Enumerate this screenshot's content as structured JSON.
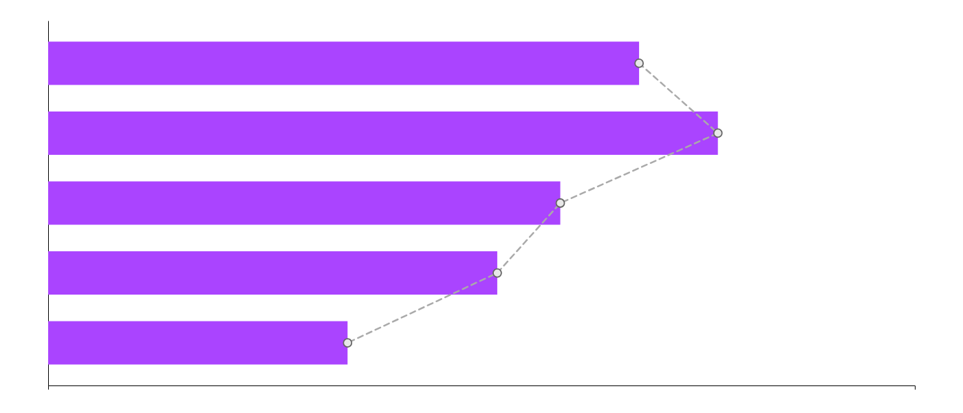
{
  "chart_data": {
    "type": "bar",
    "orientation": "horizontal",
    "categories": [
      null,
      null,
      null,
      null,
      null
    ],
    "series": [
      {
        "type": "bar",
        "color": "#aa44ff",
        "values": [
          75,
          85,
          65,
          57,
          38
        ]
      },
      {
        "type": "line",
        "color": "#aaaaaa",
        "line_style": "dashed",
        "marker": "circle",
        "values": [
          75,
          85,
          65,
          57,
          38
        ]
      }
    ],
    "xlim": [
      0,
      110
    ],
    "grid": false,
    "tick_labels": false
  }
}
